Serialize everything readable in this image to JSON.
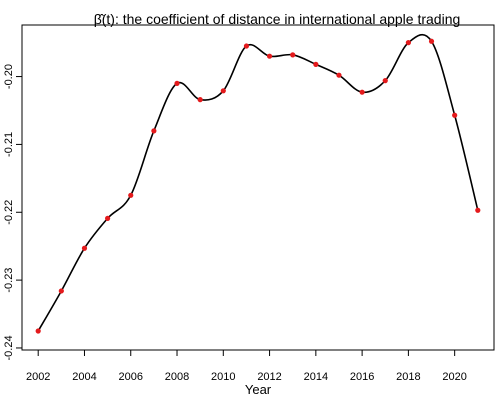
{
  "chart_data": {
    "type": "line",
    "title": "β̂(t): the coefficient of distance in international apple trading",
    "xlabel": "Year",
    "ylabel": "",
    "xlim": [
      2001.3,
      2021.7
    ],
    "ylim": [
      -0.2403,
      -0.1924
    ],
    "x_ticks": [
      2002,
      2004,
      2006,
      2008,
      2010,
      2012,
      2014,
      2016,
      2018,
      2020
    ],
    "y_ticks": [
      -0.24,
      -0.23,
      -0.22,
      -0.21,
      -0.2
    ],
    "y_tick_labels": [
      "-0.24",
      "-0.23",
      "-0.22",
      "-0.21",
      "-0.20"
    ],
    "series": [
      {
        "color": "#e41a1c",
        "x": [
          2002,
          2003,
          2004,
          2005,
          2006,
          2007,
          2008,
          2009,
          2010,
          2011,
          2012,
          2013,
          2014,
          2015,
          2016,
          2017,
          2018,
          2019,
          2020,
          2021
        ],
        "y": [
          -0.2375,
          -0.2316,
          -0.2253,
          -0.2209,
          -0.2175,
          -0.208,
          -0.201,
          -0.2034,
          -0.2021,
          -0.1955,
          -0.197,
          -0.1968,
          -0.1982,
          -0.1998,
          -0.2023,
          -0.2006,
          -0.195,
          -0.1948,
          -0.2057,
          -0.2197
        ]
      }
    ],
    "curve_smooth": true,
    "grid": false,
    "legend": "none"
  }
}
